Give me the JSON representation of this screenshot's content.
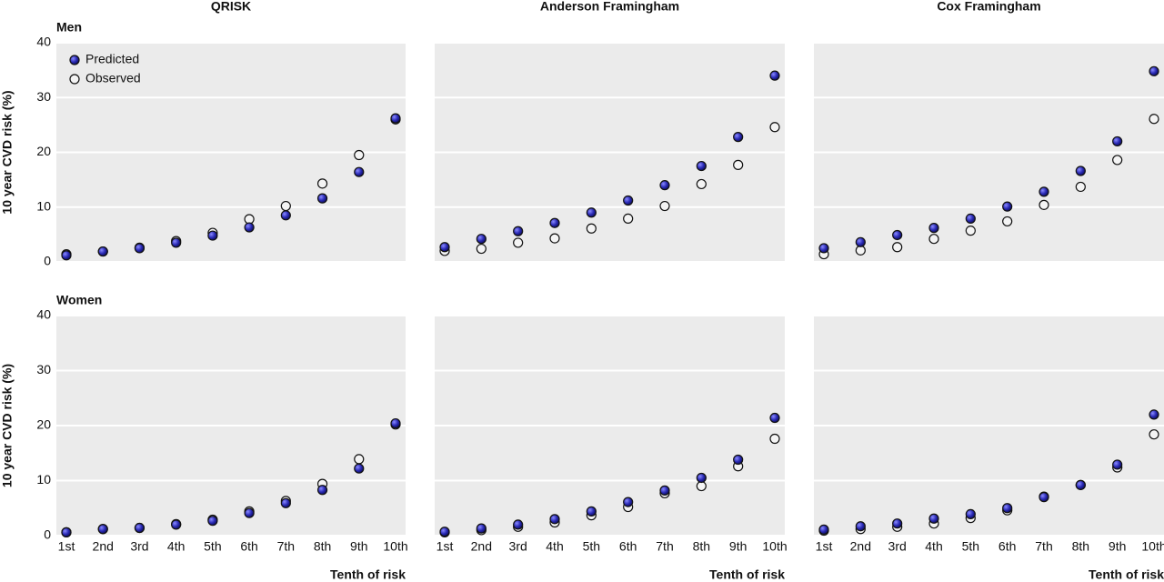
{
  "chart_data": [
    {
      "type": "scatter",
      "title": "QRISK",
      "subtitle": "Men",
      "ylabel": "10 year CVD risk (%)",
      "legend": "upper left",
      "ylim": [
        0,
        40
      ],
      "yticks": [
        0,
        10,
        20,
        30,
        40
      ],
      "grid": true,
      "series": [
        {
          "name": "Predicted",
          "color": "#2a2ab5",
          "values": [
            1.2,
            1.9,
            2.5,
            3.5,
            4.8,
            6.3,
            8.5,
            11.6,
            16.4,
            26.2
          ]
        },
        {
          "name": "Observed",
          "color": "#ffffff",
          "values": [
            1.4,
            1.9,
            2.6,
            3.8,
            5.3,
            7.8,
            10.2,
            14.3,
            19.5,
            26.0
          ]
        }
      ]
    },
    {
      "type": "scatter",
      "title": "Anderson Framingham",
      "ylim": [
        0,
        40
      ],
      "yticks": [
        0,
        10,
        20,
        30,
        40
      ],
      "grid": true,
      "series": [
        {
          "color": "#2a2ab5",
          "values": [
            2.7,
            4.2,
            5.6,
            7.1,
            9.0,
            11.2,
            14.0,
            17.5,
            22.8,
            34.0
          ]
        },
        {
          "color": "#ffffff",
          "values": [
            2.0,
            2.4,
            3.5,
            4.3,
            6.1,
            7.9,
            10.2,
            14.2,
            17.7,
            24.6
          ]
        }
      ]
    },
    {
      "type": "scatter",
      "title": "Cox Framingham",
      "ylim": [
        0,
        40
      ],
      "yticks": [
        0,
        10,
        20,
        30,
        40
      ],
      "grid": true,
      "series": [
        {
          "color": "#2a2ab5",
          "values": [
            2.5,
            3.6,
            4.9,
            6.2,
            7.9,
            10.1,
            12.8,
            16.6,
            22.0,
            34.8
          ]
        },
        {
          "color": "#ffffff",
          "values": [
            1.4,
            2.1,
            2.7,
            4.2,
            5.7,
            7.4,
            10.4,
            13.7,
            18.6,
            26.1
          ]
        }
      ]
    },
    {
      "type": "scatter",
      "subtitle": "Women",
      "ylabel": "10 year CVD risk (%)",
      "xlabel": "Tenth of risk",
      "categories": [
        "1st",
        "2nd",
        "3rd",
        "4th",
        "5th",
        "6th",
        "7th",
        "8th",
        "9th",
        "10th"
      ],
      "ylim": [
        0,
        40
      ],
      "yticks": [
        0,
        10,
        20,
        30,
        40
      ],
      "grid": true,
      "series": [
        {
          "color": "#2a2ab5",
          "values": [
            0.6,
            1.2,
            1.4,
            2.0,
            2.7,
            4.1,
            5.9,
            8.3,
            12.2,
            20.4
          ]
        },
        {
          "color": "#ffffff",
          "values": [
            0.6,
            1.2,
            1.4,
            2.1,
            2.9,
            4.4,
            6.3,
            9.4,
            13.9,
            20.2
          ]
        }
      ]
    },
    {
      "type": "scatter",
      "xlabel": "Tenth of risk",
      "categories": [
        "1st",
        "2nd",
        "3rd",
        "4th",
        "5th",
        "6th",
        "7th",
        "8th",
        "9th",
        "10th"
      ],
      "ylim": [
        0,
        40
      ],
      "yticks": [
        0,
        10,
        20,
        30,
        40
      ],
      "grid": true,
      "series": [
        {
          "color": "#2a2ab5",
          "values": [
            0.7,
            1.3,
            2.0,
            3.0,
            4.4,
            6.1,
            8.2,
            10.5,
            13.8,
            21.4
          ]
        },
        {
          "color": "#ffffff",
          "values": [
            0.6,
            1.0,
            1.6,
            2.4,
            3.7,
            5.2,
            7.7,
            9.0,
            12.6,
            17.6
          ]
        }
      ]
    },
    {
      "type": "scatter",
      "xlabel": "Tenth of risk",
      "categories": [
        "1st",
        "2nd",
        "3rd",
        "4th",
        "5th",
        "6th",
        "7th",
        "8th",
        "9th",
        "10th"
      ],
      "ylim": [
        0,
        40
      ],
      "yticks": [
        0,
        10,
        20,
        30,
        40
      ],
      "grid": true,
      "series": [
        {
          "color": "#2a2ab5",
          "values": [
            1.1,
            1.7,
            2.2,
            3.1,
            3.9,
            5.0,
            7.0,
            9.2,
            12.9,
            22.0
          ]
        },
        {
          "color": "#ffffff",
          "values": [
            0.9,
            1.2,
            1.6,
            2.2,
            3.2,
            4.6,
            7.1,
            9.2,
            12.4,
            18.4
          ]
        }
      ]
    }
  ]
}
